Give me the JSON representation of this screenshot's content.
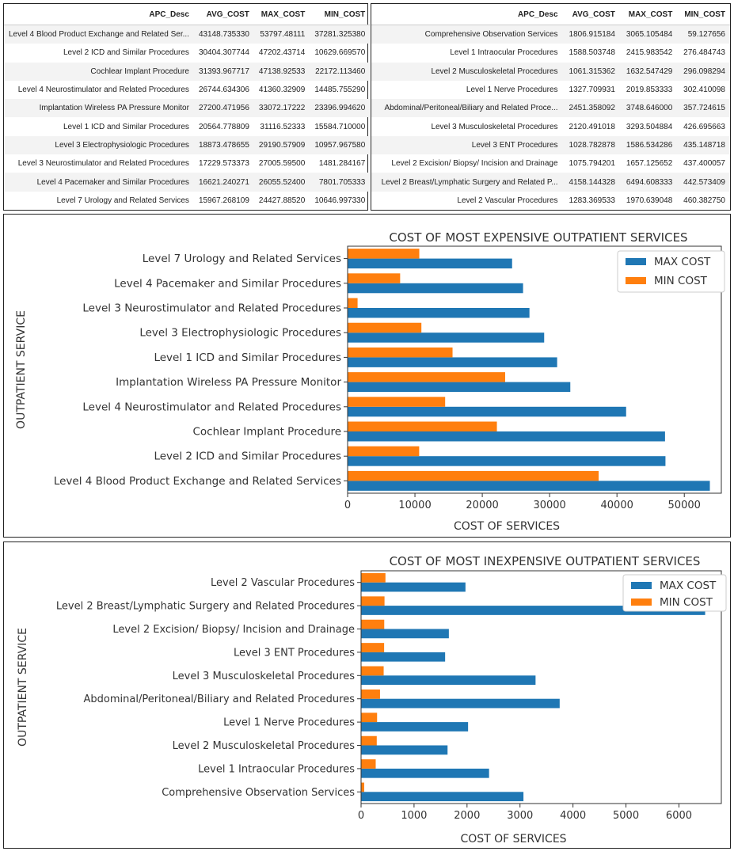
{
  "tables": [
    {
      "columns": [
        "APC_Desc",
        "AVG_COST",
        "MAX_COST",
        "MIN_COST"
      ],
      "rows": [
        [
          "Level 4 Blood Product Exchange and Related Ser...",
          "43148.735330",
          "53797.48111",
          "37281.325380"
        ],
        [
          "Level 2 ICD and Similar Procedures",
          "30404.307744",
          "47202.43714",
          "10629.669570"
        ],
        [
          "Cochlear Implant Procedure",
          "31393.967717",
          "47138.92533",
          "22172.113460"
        ],
        [
          "Level 4 Neurostimulator and Related Procedures",
          "26744.634306",
          "41360.32909",
          "14485.755290"
        ],
        [
          "Implantation Wireless PA Pressure Monitor",
          "27200.471956",
          "33072.17222",
          "23396.994620"
        ],
        [
          "Level 1 ICD and Similar Procedures",
          "20564.778809",
          "31116.52333",
          "15584.710000"
        ],
        [
          "Level 3 Electrophysiologic Procedures",
          "18873.478655",
          "29190.57909",
          "10957.967580"
        ],
        [
          "Level 3 Neurostimulator and Related Procedures",
          "17229.573373",
          "27005.59500",
          "1481.284167"
        ],
        [
          "Level 4 Pacemaker and Similar Procedures",
          "16621.240271",
          "26055.52400",
          "7801.705333"
        ],
        [
          "Level 7 Urology and Related Services",
          "15967.268109",
          "24427.88520",
          "10646.997330"
        ]
      ]
    },
    {
      "columns": [
        "APC_Desc",
        "AVG_COST",
        "MAX_COST",
        "MIN_COST"
      ],
      "rows": [
        [
          "Comprehensive Observation Services",
          "1806.915184",
          "3065.105484",
          "59.127656"
        ],
        [
          "Level 1 Intraocular Procedures",
          "1588.503748",
          "2415.983542",
          "276.484743"
        ],
        [
          "Level 2 Musculoskeletal Procedures",
          "1061.315362",
          "1632.547429",
          "296.098294"
        ],
        [
          "Level 1 Nerve Procedures",
          "1327.709931",
          "2019.853333",
          "302.410098"
        ],
        [
          "Abdominal/Peritoneal/Biliary and Related Proce...",
          "2451.358092",
          "3748.646000",
          "357.724615"
        ],
        [
          "Level 3 Musculoskeletal Procedures",
          "2120.491018",
          "3293.504884",
          "426.695663"
        ],
        [
          "Level 3 ENT Procedures",
          "1028.782878",
          "1586.534286",
          "435.148718"
        ],
        [
          "Level 2 Excision/ Biopsy/ Incision and Drainage",
          "1075.794201",
          "1657.125652",
          "437.400057"
        ],
        [
          "Level 2 Breast/Lymphatic Surgery and Related P...",
          "4158.144328",
          "6494.608333",
          "442.573409"
        ],
        [
          "Level 2 Vascular Procedures",
          "1283.369533",
          "1970.639048",
          "460.382750"
        ]
      ]
    }
  ],
  "chart_data": [
    {
      "type": "bar",
      "orientation": "horizontal",
      "title": "COST OF MOST EXPENSIVE OUTPATIENT SERVICES",
      "xlabel": "COST OF SERVICES",
      "ylabel": "OUTPATIENT SERVICE",
      "xlim": [
        0,
        55500
      ],
      "xticks": [
        0,
        10000,
        20000,
        30000,
        40000,
        50000
      ],
      "legend_position": "top-right",
      "categories": [
        "Level 4 Blood Product Exchange and Related Services",
        "Level 2 ICD and Similar Procedures",
        "Cochlear Implant Procedure",
        "Level 4 Neurostimulator and Related Procedures",
        "Implantation Wireless PA Pressure Monitor",
        "Level 1 ICD and Similar Procedures",
        "Level 3 Electrophysiologic Procedures",
        "Level 3 Neurostimulator and Related Procedures",
        "Level 4 Pacemaker and Similar Procedures",
        "Level 7 Urology and Related Services"
      ],
      "series": [
        {
          "name": "MAX COST",
          "color": "#1f77b4",
          "values": [
            53797.48,
            47202.44,
            47138.93,
            41360.33,
            33072.17,
            31116.52,
            29190.58,
            27005.6,
            26055.52,
            24427.89
          ]
        },
        {
          "name": "MIN COST",
          "color": "#ff7f0e",
          "values": [
            37281.33,
            10629.67,
            22172.11,
            14485.76,
            23396.99,
            15584.71,
            10957.97,
            1481.28,
            7801.71,
            10647.0
          ]
        }
      ]
    },
    {
      "type": "bar",
      "orientation": "horizontal",
      "title": "COST OF MOST INEXPENSIVE OUTPATIENT SERVICES",
      "xlabel": "COST OF SERVICES",
      "ylabel": "OUTPATIENT SERVICE",
      "xlim": [
        0,
        6800
      ],
      "xticks": [
        0,
        1000,
        2000,
        3000,
        4000,
        5000,
        6000
      ],
      "legend_position": "top-right",
      "categories": [
        "Comprehensive Observation Services",
        "Level 1 Intraocular Procedures",
        "Level 2 Musculoskeletal Procedures",
        "Level 1 Nerve Procedures",
        "Abdominal/Peritoneal/Biliary and Related Procedures",
        "Level 3 Musculoskeletal Procedures",
        "Level 3 ENT Procedures",
        "Level 2 Excision/ Biopsy/ Incision and Drainage",
        "Level 2 Breast/Lymphatic Surgery and Related Procedures",
        "Level 2 Vascular Procedures"
      ],
      "series": [
        {
          "name": "MAX COST",
          "color": "#1f77b4",
          "values": [
            3065.11,
            2415.98,
            1632.55,
            2019.85,
            3748.65,
            3293.5,
            1586.53,
            1657.13,
            6494.61,
            1970.64
          ]
        },
        {
          "name": "MIN COST",
          "color": "#ff7f0e",
          "values": [
            59.13,
            276.48,
            296.1,
            302.41,
            357.72,
            426.7,
            435.15,
            437.4,
            442.57,
            460.38
          ]
        }
      ]
    }
  ]
}
